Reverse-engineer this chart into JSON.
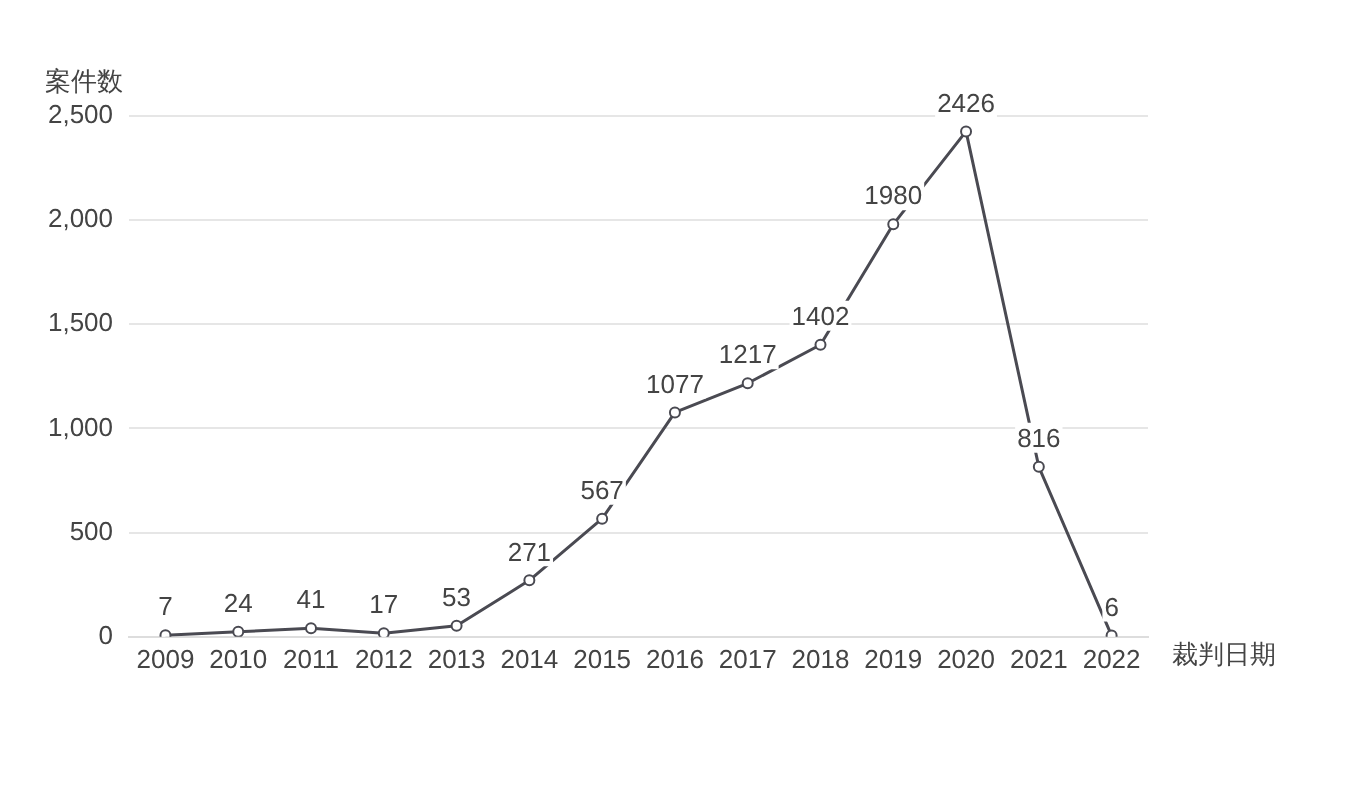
{
  "chart_data": {
    "type": "line",
    "xlabel": "裁判日期",
    "ylabel": "案件数",
    "categories": [
      "2009",
      "2010",
      "2011",
      "2012",
      "2013",
      "2014",
      "2015",
      "2016",
      "2017",
      "2018",
      "2019",
      "2020",
      "2021",
      "2022"
    ],
    "series": [
      {
        "color": "#4a4a52",
        "values": [
          7,
          24,
          41,
          17,
          53,
          271,
          567,
          1077,
          1217,
          1402,
          1980,
          2426,
          816,
          6
        ]
      }
    ],
    "ylim": [
      0,
      2500
    ],
    "yticks": [
      0,
      500,
      {
        "value": 1000,
        "label": "1,000"
      },
      {
        "value": 1500,
        "label": "1,500"
      },
      {
        "value": 2000,
        "label": "2,000"
      },
      {
        "value": 2500,
        "label": "2,500"
      }
    ],
    "grid": "y",
    "data_labels": true,
    "marker": "circle",
    "line_style": "solid",
    "legend": false
  }
}
